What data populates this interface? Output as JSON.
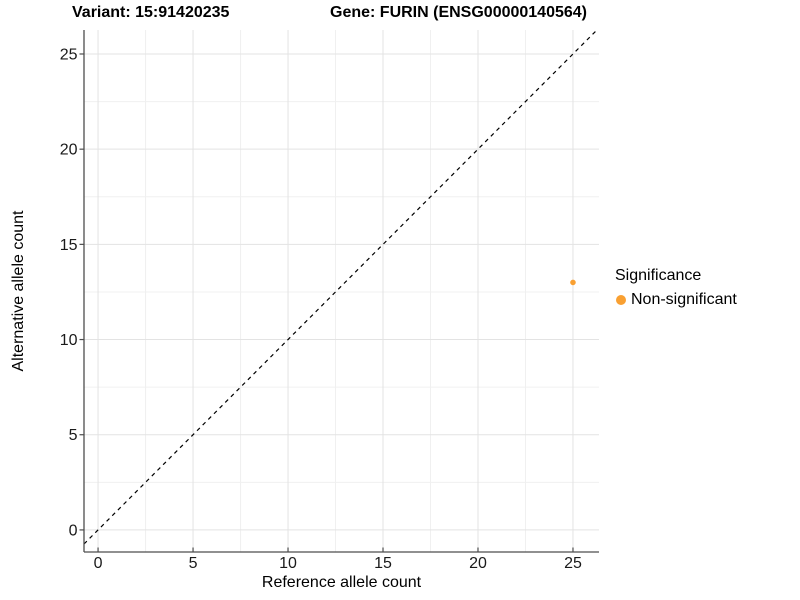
{
  "titles": {
    "left": "Variant: 15:91420235",
    "right": "Gene: FURIN (ENSG00000140564)"
  },
  "chart_data": {
    "type": "scatter",
    "title_left": "Variant: 15:91420235",
    "title_right": "Gene: FURIN (ENSG00000140564)",
    "xlabel": "Reference allele count",
    "ylabel": "Alternative allele count",
    "xlim": [
      -0.74,
      26.37
    ],
    "ylim": [
      -1.16,
      26.26
    ],
    "x_major_ticks": [
      0,
      5,
      10,
      15,
      20,
      25
    ],
    "y_major_ticks": [
      0,
      5,
      10,
      15,
      20,
      25
    ],
    "x_minor_ticks": [
      2.5,
      7.5,
      12.5,
      17.5,
      22.5
    ],
    "y_minor_ticks": [
      2.5,
      7.5,
      12.5,
      17.5,
      22.5
    ],
    "grid": "major+minor",
    "identity_line": {
      "slope": 1,
      "intercept": 0,
      "style": "dashed",
      "color": "#000000"
    },
    "series": [
      {
        "name": "Non-significant",
        "color": "#F9A032",
        "points": [
          {
            "x": 25,
            "y": 13
          }
        ]
      }
    ],
    "legend": {
      "title": "Significance",
      "position": "right",
      "entries": [
        {
          "label": "Non-significant",
          "color": "#F9A032"
        }
      ]
    },
    "colors": {
      "grid_major": "#E3E3E3",
      "grid_minor": "#F0F0F0",
      "axis_line": "#4D4D4D",
      "tick_label": "#1A1A1A",
      "point": "#F9A032"
    }
  }
}
